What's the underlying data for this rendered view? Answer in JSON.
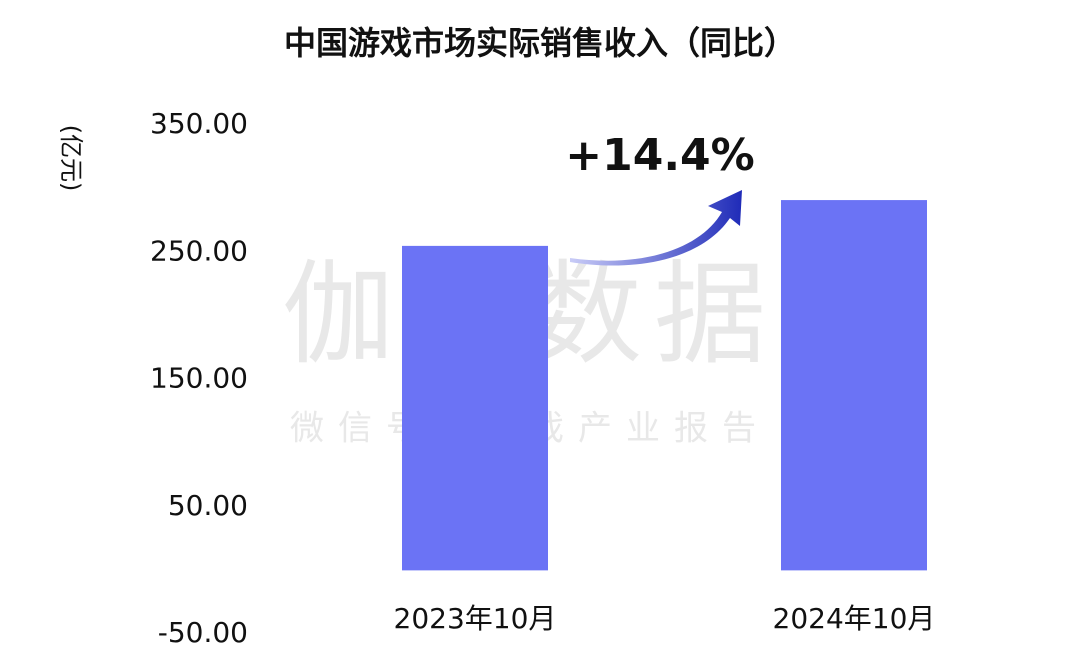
{
  "chart_data": {
    "type": "bar",
    "title": "中国游戏市场实际销售收入（同比）",
    "y_label": "(亿元)",
    "annotation": "+14.4%",
    "watermark": "伽马数据",
    "watermark_subtitle": "微信号：游戏产业报告",
    "categories": [
      "2023年10月",
      "2024年10月"
    ],
    "values": [
      255,
      291
    ],
    "color": "#6b73f5",
    "ylim": [
      -50,
      350
    ],
    "yticks": [
      {
        "value": -50,
        "label": "-50.00"
      },
      {
        "value": 50,
        "label": "50.00"
      },
      {
        "value": 150,
        "label": "150.00"
      },
      {
        "value": 250,
        "label": "250.00"
      },
      {
        "value": 350,
        "label": "350.00"
      }
    ],
    "grid": false
  }
}
